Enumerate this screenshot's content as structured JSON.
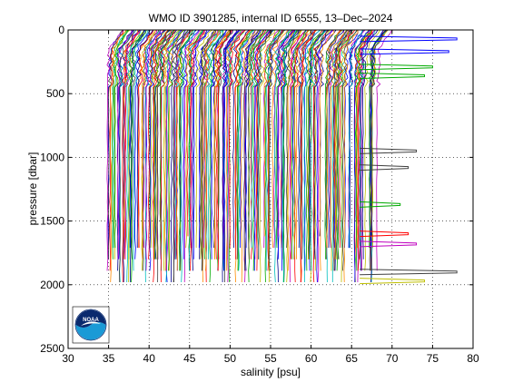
{
  "chart_data": {
    "type": "line",
    "title": "WMO ID 3901285, internal ID 6555, 13–Dec–2024",
    "xlabel": "salinity [psu]",
    "ylabel": "pressure [dbar]",
    "xlim": [
      30,
      80
    ],
    "ylim": [
      0,
      2500
    ],
    "y_reversed": true,
    "grid": true,
    "xticks": [
      30,
      35,
      40,
      45,
      50,
      55,
      60,
      65,
      70,
      75,
      80
    ],
    "yticks": [
      0,
      500,
      1000,
      1500,
      2000,
      2500
    ],
    "colors": [
      "#0000ff",
      "#00aa00",
      "#ff0000",
      "#00bfbf",
      "#bf00bf",
      "#bfbf00",
      "#404040",
      "#00008b",
      "#ff8c00"
    ],
    "profile_count": 260,
    "salinity_min": 34.8,
    "salinity_max": 68,
    "max_pressure": 2050,
    "outliers": [
      {
        "salinity": 78,
        "pressure": 70,
        "color": "#0000ff"
      },
      {
        "salinity": 77,
        "pressure": 170,
        "color": "#0000ff"
      },
      {
        "salinity": 75,
        "pressure": 290,
        "color": "#00aa00"
      },
      {
        "salinity": 74,
        "pressure": 360,
        "color": "#00aa00"
      },
      {
        "salinity": 73,
        "pressure": 950,
        "color": "#404040"
      },
      {
        "salinity": 72,
        "pressure": 1080,
        "color": "#404040"
      },
      {
        "salinity": 71,
        "pressure": 1370,
        "color": "#00aa00"
      },
      {
        "salinity": 72,
        "pressure": 1600,
        "color": "#ff0000"
      },
      {
        "salinity": 73,
        "pressure": 1680,
        "color": "#bf00bf"
      },
      {
        "salinity": 78,
        "pressure": 1900,
        "color": "#404040"
      },
      {
        "salinity": 74,
        "pressure": 1970,
        "color": "#bfbf00"
      }
    ]
  },
  "logo": {
    "name": "noaa-logo",
    "text": "NOAA"
  }
}
